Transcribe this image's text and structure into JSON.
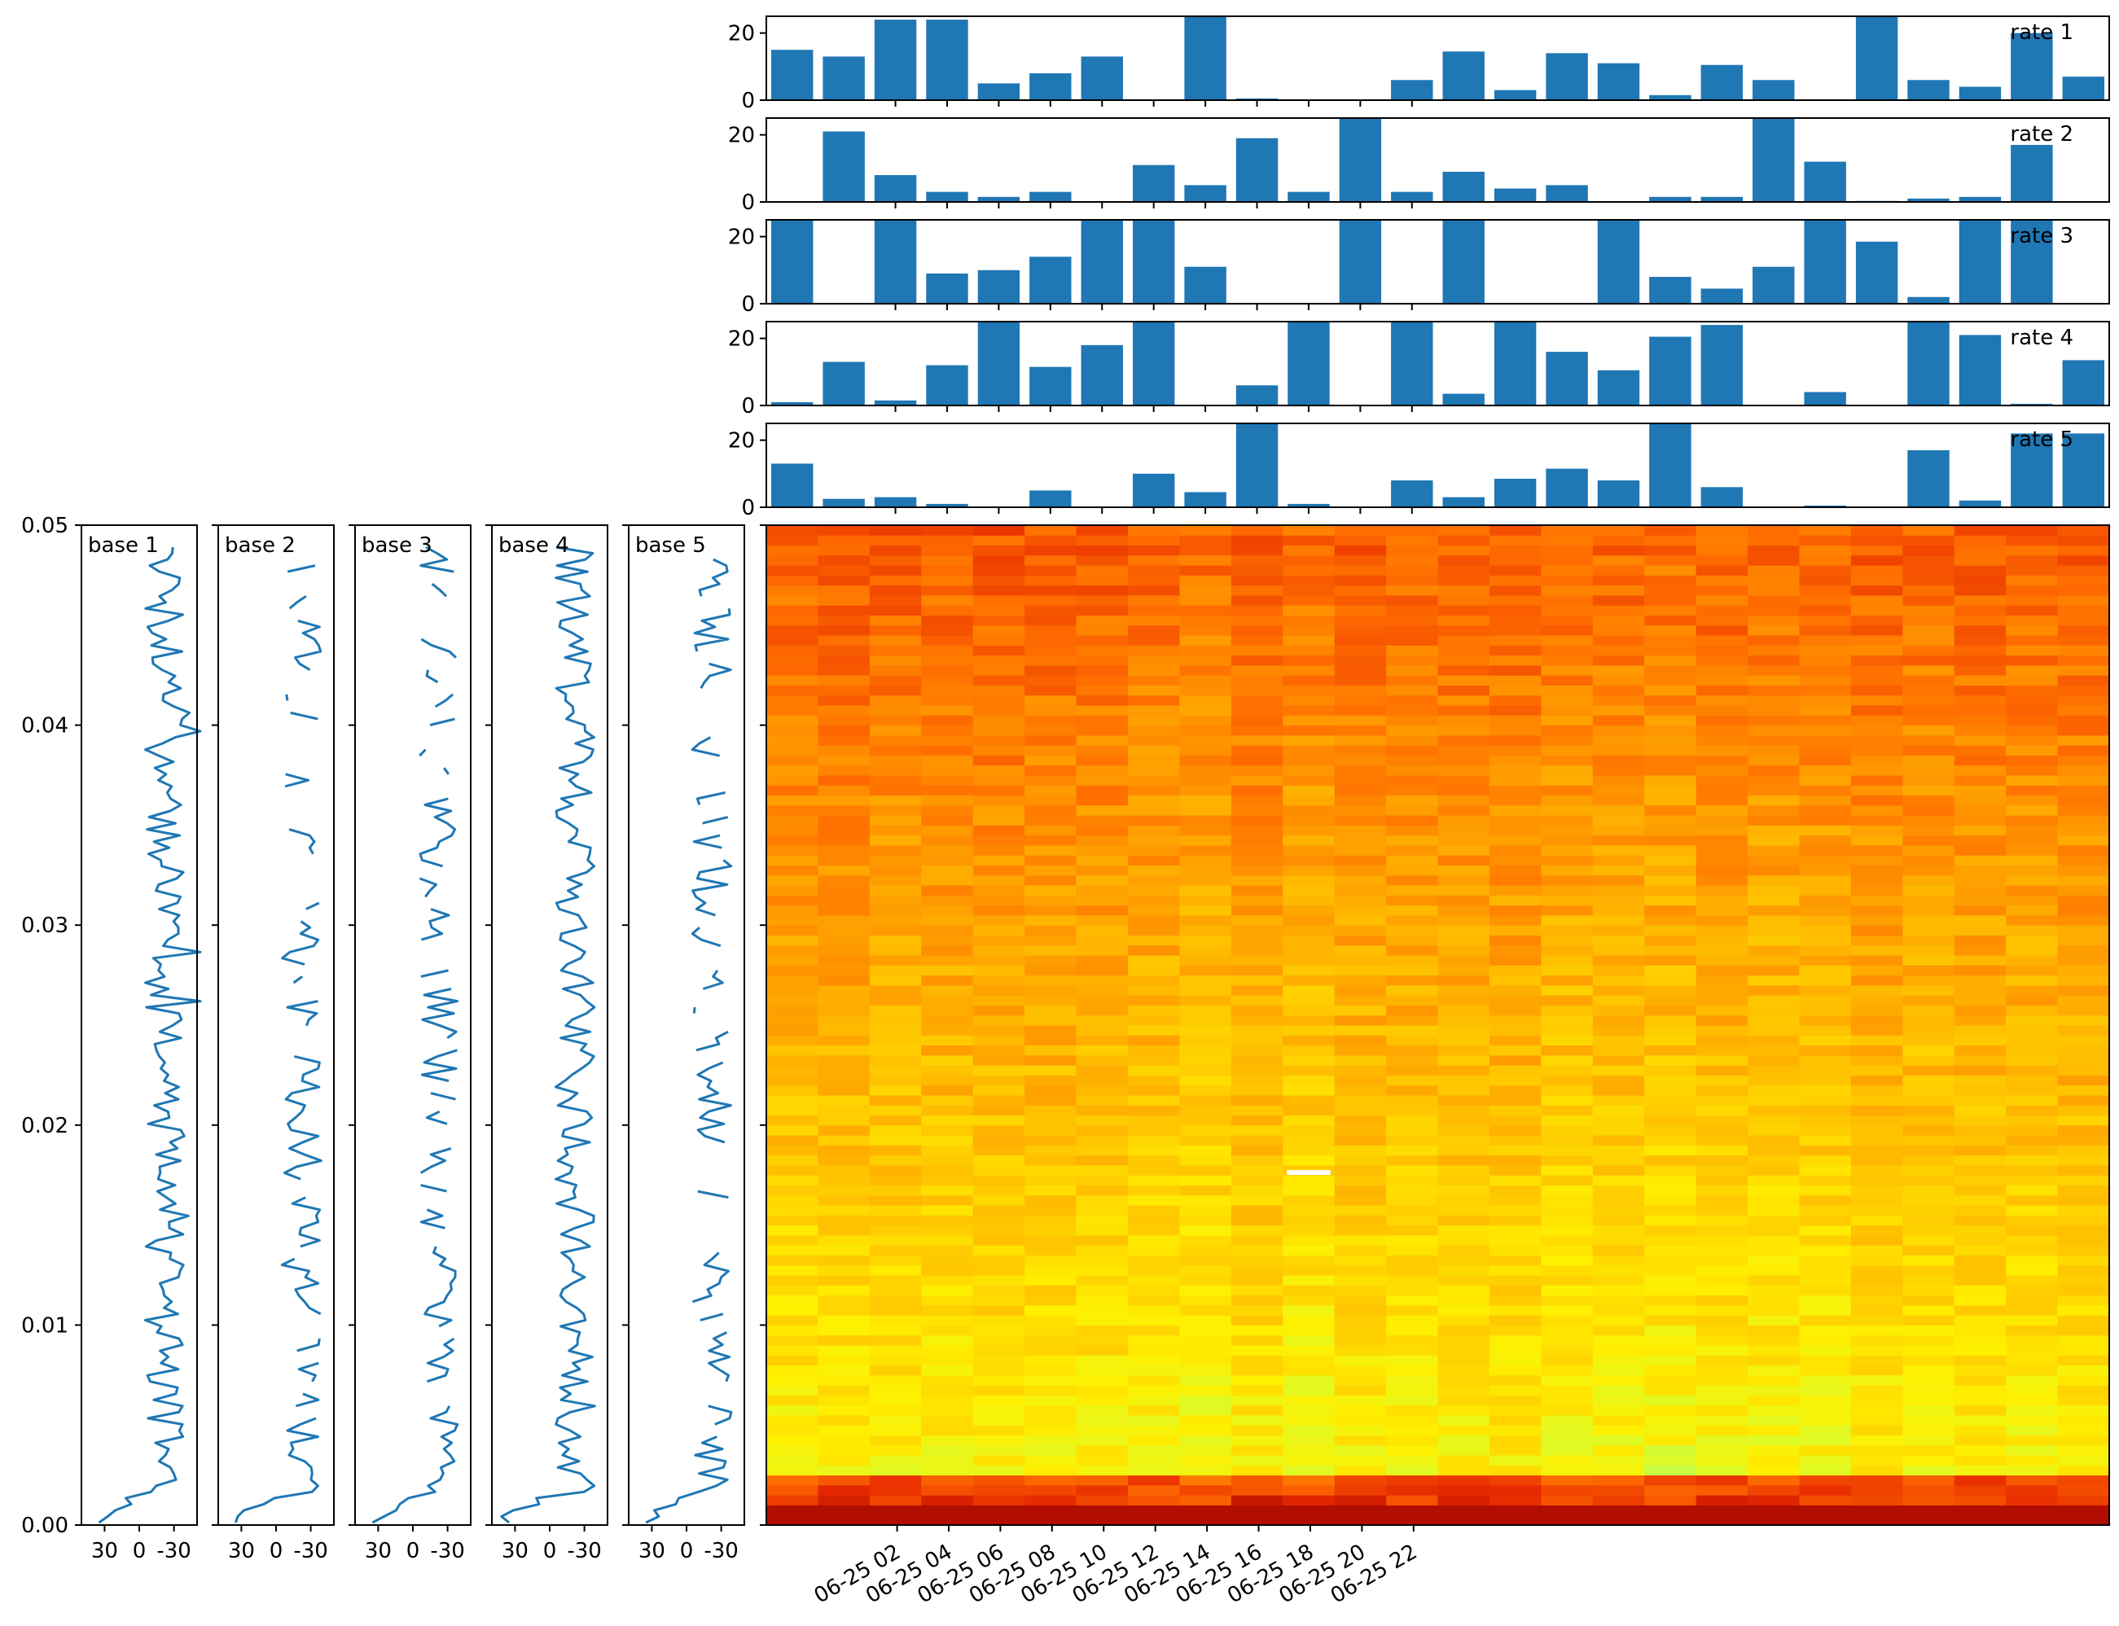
{
  "chart_data": {
    "type": "composite",
    "bar_color": "#1f77b4",
    "line_color": "#1f77b4",
    "rate_panels": [
      {
        "label": "rate 1",
        "ylim": [
          0,
          25
        ],
        "yticks": [
          "0",
          "20"
        ],
        "values": [
          15,
          13,
          24,
          24,
          5,
          8,
          13,
          0,
          25,
          0.5,
          0,
          0,
          6,
          14.5,
          3,
          14,
          11,
          1.5,
          10.5,
          6,
          0,
          25,
          6,
          4,
          20,
          7
        ]
      },
      {
        "label": "rate 2",
        "ylim": [
          0,
          25
        ],
        "yticks": [
          "0",
          "20"
        ],
        "values": [
          0,
          21,
          8,
          3,
          1.5,
          3,
          0,
          11,
          5,
          19,
          3,
          25,
          3,
          9,
          4,
          5,
          0,
          1.5,
          1.5,
          25,
          12,
          0.3,
          1,
          1.5,
          17,
          0
        ]
      },
      {
        "label": "rate 3",
        "ylim": [
          0,
          25
        ],
        "yticks": [
          "0",
          "20"
        ],
        "values": [
          25,
          0,
          25,
          9,
          10,
          14,
          25,
          25,
          11,
          0,
          0,
          25,
          0,
          25,
          0,
          0,
          25,
          8,
          4.5,
          11,
          25,
          18.5,
          2,
          25,
          25,
          0
        ]
      },
      {
        "label": "rate 4",
        "ylim": [
          0,
          25
        ],
        "yticks": [
          "0",
          "20"
        ],
        "values": [
          1,
          13,
          1.5,
          12,
          25,
          11.5,
          18,
          25,
          0,
          6,
          25,
          0,
          25,
          3.5,
          25,
          16,
          10.5,
          20.5,
          24,
          0,
          4,
          0,
          25,
          21,
          0.5,
          13.5
        ]
      },
      {
        "label": "rate 5",
        "ylim": [
          0,
          25
        ],
        "yticks": [
          "0",
          "20"
        ],
        "values": [
          13,
          2.5,
          3,
          1,
          0,
          5,
          0,
          10,
          4.5,
          25,
          1,
          0,
          8,
          3,
          8.5,
          11.5,
          8,
          25,
          6,
          0,
          0.5,
          0,
          17,
          2,
          22,
          22
        ]
      }
    ],
    "base_panels": [
      {
        "label": "base 1",
        "xticks": [
          "30",
          "0",
          "-30"
        ],
        "xlim": [
          50,
          -50
        ],
        "seed": 11,
        "gaps": []
      },
      {
        "label": "base 2",
        "xticks": [
          "30",
          "0",
          "-30"
        ],
        "xlim": [
          50,
          -50
        ],
        "seed": 23,
        "gaps": [
          0.55,
          0.85
        ]
      },
      {
        "label": "base 3",
        "xticks": [
          "30",
          "0",
          "-30"
        ],
        "xlim": [
          50,
          -50
        ],
        "seed": 37,
        "gaps": [
          0.3,
          0.6
        ]
      },
      {
        "label": "base 4",
        "xticks": [
          "30",
          "0",
          "-30"
        ],
        "xlim": [
          50,
          -50
        ],
        "seed": 41,
        "gaps": []
      },
      {
        "label": "base 5",
        "xticks": [
          "30",
          "0",
          "-30"
        ],
        "xlim": [
          50,
          -50
        ],
        "seed": 53,
        "gaps": [
          0.2,
          0.75
        ]
      }
    ],
    "heatmap": {
      "colormap": "autumn-to-green",
      "rows": 100,
      "cols": 26,
      "ylim": [
        0,
        0.05
      ],
      "yticks": [
        "0.00",
        "0.01",
        "0.02",
        "0.03",
        "0.04",
        "0.05"
      ],
      "xticks": [
        "06-25 02",
        "06-25 04",
        "06-25 06",
        "06-25 08",
        "06-25 10",
        "06-25 12",
        "06-25 14",
        "06-25 16",
        "06-25 18",
        "06-25 20",
        "06-25 22"
      ]
    }
  }
}
